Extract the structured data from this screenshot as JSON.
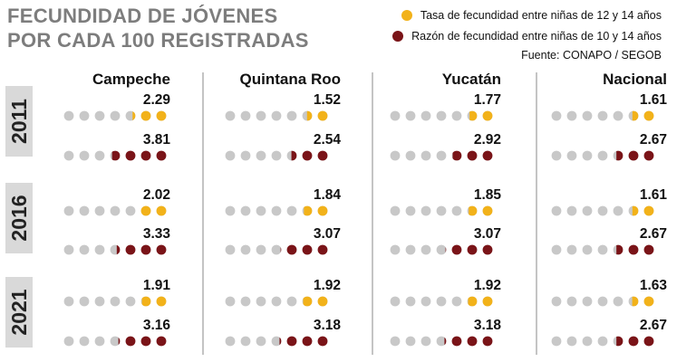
{
  "title_line1": "FECUNDIDAD DE JÓVENES",
  "title_line2": "POR CADA 100 REGISTRADAS",
  "source": "Fuente: CONAPO / SEGOB",
  "colors": {
    "tasa": "#f2b21a",
    "razon": "#7a1418",
    "empty": "#c8c8c8",
    "year_bg": "#d9d9d9",
    "divider": "#8a8a8a",
    "title": "#7d7d7d"
  },
  "chart_data": {
    "type": "dot-matrix",
    "dots_per_row": 7,
    "legend": [
      {
        "key": "tasa",
        "label": "Tasa de fecundidad entre niñas de 12  y 14 años"
      },
      {
        "key": "razon",
        "label": "Razón de fecundidad entre niñas de 10 y 14 años"
      }
    ],
    "regions": [
      "Campeche",
      "Quintana Roo",
      "Yucatán",
      "Nacional"
    ],
    "years": [
      {
        "year": "2011",
        "tasa": {
          "values": [
            2.29,
            1.52,
            1.77,
            1.61
          ],
          "labels": [
            "2.29",
            "1.52",
            "1.77",
            "1.61"
          ]
        },
        "razon": {
          "values": [
            3.81,
            2.54,
            2.92,
            2.67
          ],
          "labels": [
            "3.81",
            "2.54",
            "2.92",
            "2.67"
          ]
        }
      },
      {
        "year": "2016",
        "tasa": {
          "values": [
            2.02,
            1.84,
            1.85,
            1.61
          ],
          "labels": [
            "2.02",
            "1.84",
            "1.85",
            "1.61"
          ]
        },
        "razon": {
          "values": [
            3.33,
            3.07,
            3.07,
            2.67
          ],
          "labels": [
            "3.33",
            "3.07",
            "3.07",
            "2.67"
          ]
        }
      },
      {
        "year": "2021",
        "tasa": {
          "values": [
            1.91,
            1.92,
            1.92,
            1.63
          ],
          "labels": [
            "1.91",
            "1.92",
            "1.92",
            "1.63"
          ]
        },
        "razon": {
          "values": [
            3.16,
            3.18,
            3.18,
            2.67
          ],
          "labels": [
            "3.16",
            "3.18",
            "3.18",
            "2.67"
          ]
        }
      }
    ]
  }
}
